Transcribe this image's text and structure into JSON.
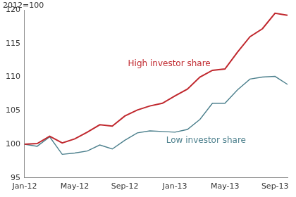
{
  "chart_data": {
    "type": "line",
    "y_label": "2012=100",
    "categories": [
      "Jan-12",
      null,
      null,
      null,
      "May-12",
      null,
      null,
      null,
      "Sep-12",
      null,
      null,
      null,
      "Jan-13",
      null,
      null,
      null,
      "May-13",
      null,
      null,
      null,
      "Sep-13",
      null
    ],
    "series": [
      {
        "name": "High investor share",
        "color": "#c0282e",
        "values": [
          100,
          100.1,
          101.2,
          100.2,
          100.8,
          101.8,
          102.9,
          102.7,
          104.2,
          105.1,
          105.7,
          106.1,
          107.2,
          108.2,
          110.0,
          111.0,
          111.2,
          113.7,
          116.0,
          117.2,
          119.5,
          119.2
        ]
      },
      {
        "name": "Low investor share",
        "color": "#4b7f8c",
        "values": [
          100,
          99.7,
          101.1,
          98.5,
          98.7,
          99.0,
          99.9,
          99.3,
          100.6,
          101.7,
          102.0,
          101.9,
          101.8,
          102.2,
          103.7,
          106.1,
          106.1,
          108.1,
          109.7,
          110.0,
          110.1,
          108.9
        ]
      }
    ],
    "ylim": [
      95,
      120
    ],
    "yticks": [
      95,
      100,
      105,
      110,
      115,
      120
    ],
    "grid": false
  }
}
